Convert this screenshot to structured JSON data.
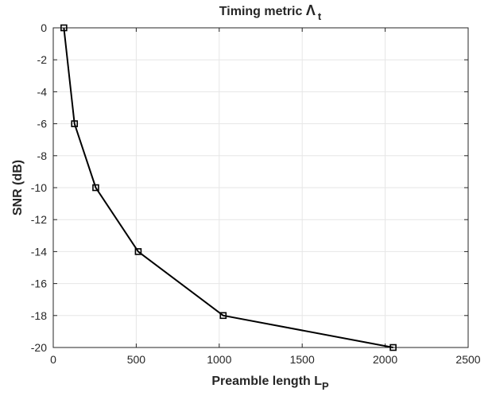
{
  "chart_data": {
    "type": "line",
    "title": {
      "prefix": "Timing metric ",
      "symbol": "Λ",
      "subscript": "t"
    },
    "xlabel": {
      "main": "Preamble length L",
      "subscript": "P"
    },
    "ylabel": "SNR (dB)",
    "xlim": [
      0,
      2500
    ],
    "ylim": [
      -20,
      0
    ],
    "xticks": [
      0,
      500,
      1000,
      1500,
      2000,
      2500
    ],
    "yticks": [
      0,
      -2,
      -4,
      -6,
      -8,
      -10,
      -12,
      -14,
      -16,
      -18,
      -20
    ],
    "grid": true,
    "series": [
      {
        "color": "#000000",
        "marker": "square",
        "x": [
          64,
          128,
          256,
          512,
          1024,
          2048
        ],
        "y": [
          0,
          -6,
          -10,
          -14,
          -18,
          -20
        ]
      }
    ]
  }
}
